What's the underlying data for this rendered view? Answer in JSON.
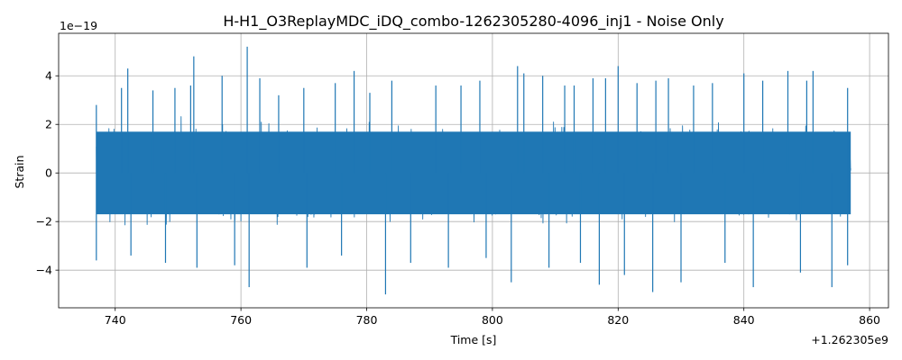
{
  "chart_data": {
    "type": "line",
    "title": "H-H1_O3ReplayMDC_iDQ_combo-1262305280-4096_inj1 - Noise Only",
    "xlabel": "Time [s]",
    "ylabel": "Strain",
    "x_offset_label": "+1.262305e9",
    "y_scale_label": "1e−19",
    "xlim": [
      731,
      863
    ],
    "ylim": [
      -5.55,
      5.75
    ],
    "x_ticks": [
      740,
      760,
      780,
      800,
      820,
      840,
      860
    ],
    "x_tick_labels": [
      "740",
      "760",
      "780",
      "800",
      "820",
      "840",
      "860"
    ],
    "y_ticks": [
      -4,
      -2,
      0,
      2,
      4
    ],
    "y_tick_labels": [
      "−4",
      "−2",
      "0",
      "2",
      "4"
    ],
    "grid": true,
    "series": [
      {
        "color": "#1f77b4",
        "x_range": [
          737,
          857
        ],
        "typical_envelope": [
          -1.7,
          1.7
        ],
        "peaks": [
          {
            "x": 737.0,
            "y": 2.8
          },
          {
            "x": 737.0,
            "y": -3.6
          },
          {
            "x": 741.0,
            "y": 3.5
          },
          {
            "x": 742.0,
            "y": 4.3
          },
          {
            "x": 742.5,
            "y": -3.4
          },
          {
            "x": 746.0,
            "y": 3.4
          },
          {
            "x": 748.0,
            "y": -3.7
          },
          {
            "x": 749.5,
            "y": 3.5
          },
          {
            "x": 752.0,
            "y": 3.6
          },
          {
            "x": 752.5,
            "y": 4.8
          },
          {
            "x": 753.0,
            "y": -3.9
          },
          {
            "x": 757.0,
            "y": 4.0
          },
          {
            "x": 759.0,
            "y": -3.8
          },
          {
            "x": 761.0,
            "y": 5.2
          },
          {
            "x": 761.3,
            "y": -4.7
          },
          {
            "x": 763.0,
            "y": 3.9
          },
          {
            "x": 766.0,
            "y": 3.2
          },
          {
            "x": 770.0,
            "y": 3.5
          },
          {
            "x": 770.5,
            "y": -3.9
          },
          {
            "x": 775.0,
            "y": 3.7
          },
          {
            "x": 776.0,
            "y": -3.4
          },
          {
            "x": 778.0,
            "y": 4.2
          },
          {
            "x": 780.5,
            "y": 3.3
          },
          {
            "x": 783.0,
            "y": -5.0
          },
          {
            "x": 784.0,
            "y": 3.8
          },
          {
            "x": 787.0,
            "y": -3.7
          },
          {
            "x": 791.0,
            "y": 3.6
          },
          {
            "x": 793.0,
            "y": -3.9
          },
          {
            "x": 795.0,
            "y": 3.6
          },
          {
            "x": 798.0,
            "y": 3.8
          },
          {
            "x": 799.0,
            "y": -3.5
          },
          {
            "x": 803.0,
            "y": -4.5
          },
          {
            "x": 804.0,
            "y": 4.4
          },
          {
            "x": 805.0,
            "y": 4.1
          },
          {
            "x": 808.0,
            "y": 4.0
          },
          {
            "x": 809.0,
            "y": -3.9
          },
          {
            "x": 811.5,
            "y": 3.6
          },
          {
            "x": 813.0,
            "y": 3.6
          },
          {
            "x": 814.0,
            "y": -3.7
          },
          {
            "x": 816.0,
            "y": 3.9
          },
          {
            "x": 817.0,
            "y": -4.6
          },
          {
            "x": 818.0,
            "y": 3.9
          },
          {
            "x": 820.0,
            "y": 4.4
          },
          {
            "x": 821.0,
            "y": -4.2
          },
          {
            "x": 823.0,
            "y": 3.7
          },
          {
            "x": 825.5,
            "y": -4.9
          },
          {
            "x": 826.0,
            "y": 3.8
          },
          {
            "x": 828.0,
            "y": 3.9
          },
          {
            "x": 830.0,
            "y": -4.5
          },
          {
            "x": 832.0,
            "y": 3.6
          },
          {
            "x": 835.0,
            "y": 3.7
          },
          {
            "x": 837.0,
            "y": -3.7
          },
          {
            "x": 840.0,
            "y": 4.1
          },
          {
            "x": 841.5,
            "y": -4.7
          },
          {
            "x": 843.0,
            "y": 3.8
          },
          {
            "x": 847.0,
            "y": 4.2
          },
          {
            "x": 849.0,
            "y": -4.1
          },
          {
            "x": 850.0,
            "y": 3.8
          },
          {
            "x": 851.0,
            "y": 4.2
          },
          {
            "x": 854.0,
            "y": -4.7
          },
          {
            "x": 856.5,
            "y": 3.5
          },
          {
            "x": 856.5,
            "y": -3.8
          }
        ]
      }
    ]
  }
}
